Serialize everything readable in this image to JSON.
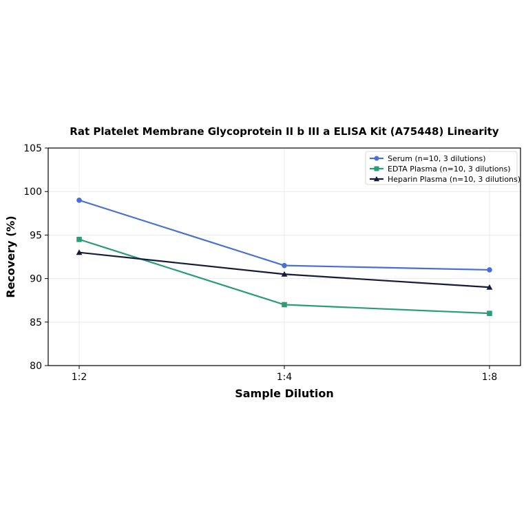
{
  "chart_data": {
    "type": "line",
    "title": "Rat Platelet Membrane Glycoprotein II b III a ELISA Kit (A75448) Linearity",
    "xlabel": "Sample Dilution",
    "ylabel": "Recovery (%)",
    "categories": [
      "1:2",
      "1:4",
      "1:8"
    ],
    "ylim": [
      80,
      105
    ],
    "yticks": [
      80,
      85,
      90,
      95,
      100,
      105
    ],
    "grid": true,
    "legend_position": "top-right",
    "series": [
      {
        "name": "Serum (n=10, 3 dilutions)",
        "values": [
          99,
          91.5,
          91
        ],
        "color": "#4a6fd4",
        "marker": "circle"
      },
      {
        "name": "EDTA Plasma (n=10, 3 dilutions)",
        "values": [
          94.5,
          87,
          86
        ],
        "color": "#2a9d76",
        "marker": "square"
      },
      {
        "name": "Heparin Plasma (n=10, 3 dilutions)",
        "values": [
          93,
          90.5,
          89
        ],
        "color": "#141c3a",
        "marker": "triangle"
      }
    ]
  }
}
